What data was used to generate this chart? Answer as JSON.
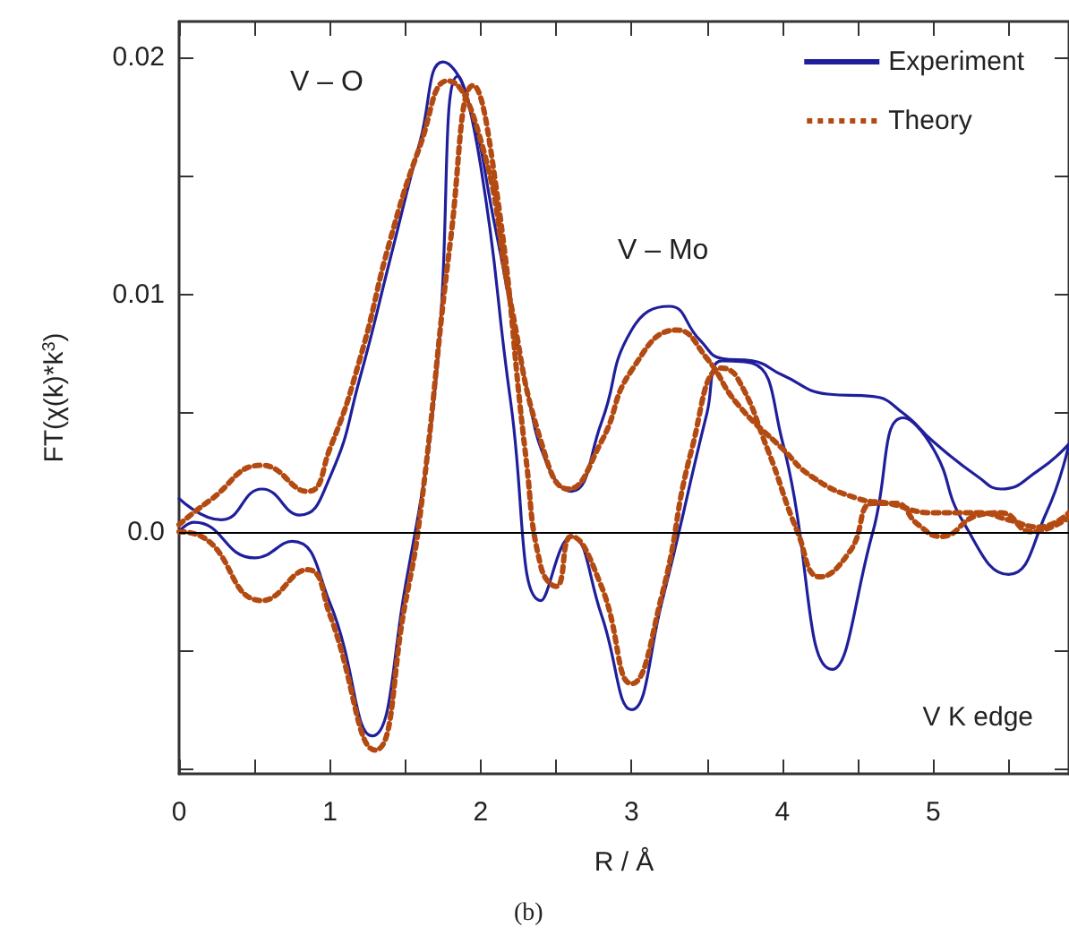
{
  "chart_data": {
    "type": "line",
    "xlabel": "R / Å",
    "ylabel": "FT(χ(k)*k$^{3}$)",
    "xlim": [
      0,
      5.9
    ],
    "ylim": [
      -0.0102,
      0.0215
    ],
    "xticks": [
      0,
      {
        "value": 0.5,
        "label": null
      },
      1,
      {
        "value": 1.5,
        "label": null
      },
      2,
      {
        "value": 2.5,
        "label": null
      },
      3,
      {
        "value": 3.5,
        "label": null
      },
      4,
      {
        "value": 4.5,
        "label": null
      },
      5,
      {
        "value": 5.5,
        "label": null
      }
    ],
    "yticks": [
      {
        "value": -0.01,
        "label": null
      },
      {
        "value": -0.005,
        "label": null
      },
      {
        "value": 0,
        "label": "0.0"
      },
      {
        "value": 0.005,
        "label": null
      },
      0.01,
      {
        "value": 0.015,
        "label": null
      },
      0.02
    ],
    "grid": false,
    "legend": "top right",
    "marker": "none",
    "ref_lines": [
      {
        "axis": "y",
        "value": 0,
        "label": null,
        "color": "#000000"
      }
    ],
    "annotations": [
      "V – O",
      "V – Mo",
      "V K edge",
      "(b)"
    ],
    "series": [
      {
        "name": "Experiment",
        "color": "#1f1f9c",
        "line_style": "solid",
        "x": [
          0,
          0.28,
          0.55,
          0.8,
          1.0,
          1.2,
          1.4,
          1.6,
          1.75,
          1.9,
          2.1,
          2.3,
          2.45,
          2.6,
          2.8,
          3.0,
          3.25,
          3.45,
          3.6,
          3.8,
          4.0,
          4.3,
          4.6,
          4.8,
          5.0,
          5.3,
          5.45,
          5.7,
          5.9
        ],
        "values": [
          0.0014,
          0.0005,
          0.0018,
          0.0007,
          0.0023,
          0.0065,
          0.0115,
          0.0165,
          0.0198,
          0.0185,
          0.0127,
          0.0062,
          0.0027,
          0.0017,
          0.0046,
          0.0085,
          0.0095,
          0.0081,
          0.0073,
          0.0072,
          0.0066,
          0.0058,
          0.0057,
          0.005,
          0.0038,
          0.0023,
          0.0018,
          0.0026,
          0.0037
        ]
      },
      {
        "color": "#1f1f9c",
        "line_style": "solid",
        "x": [
          0,
          0.1,
          0.5,
          0.75,
          1.0,
          1.28,
          1.5,
          1.7,
          1.85,
          2.0,
          2.2,
          2.4,
          2.6,
          2.8,
          3.0,
          3.2,
          3.5,
          3.6,
          3.8,
          4.0,
          4.33,
          4.6,
          4.8,
          5.0,
          5.2,
          5.5,
          5.75,
          5.9
        ],
        "values": [
          0.0,
          0.0004,
          -0.0011,
          -0.0004,
          -0.003,
          -0.0086,
          -0.0023,
          0.0062,
          0.0192,
          0.0154,
          0.0054,
          -0.0029,
          -0.0002,
          -0.0035,
          -0.0075,
          -0.003,
          0.005,
          0.0072,
          0.0071,
          0.0038,
          -0.0058,
          0.0,
          0.0048,
          0.0035,
          0.0004,
          -0.0018,
          0.0008,
          0.0037
        ]
      },
      {
        "name": "Theory",
        "color": "#b34a12",
        "line_style": "dotted",
        "x": [
          0,
          0.2,
          0.55,
          0.85,
          1.0,
          1.2,
          1.4,
          1.6,
          1.78,
          2.0,
          2.2,
          2.4,
          2.58,
          2.8,
          3.0,
          3.3,
          3.5,
          3.7,
          4.0,
          4.2,
          4.5,
          4.7,
          5.0,
          5.3,
          5.5,
          5.7,
          5.9
        ],
        "values": [
          0.0003,
          0.0013,
          0.0028,
          0.0017,
          0.0035,
          0.0073,
          0.0123,
          0.0163,
          0.019,
          0.0165,
          0.0096,
          0.0038,
          0.0018,
          0.0038,
          0.0068,
          0.0085,
          0.0073,
          0.0054,
          0.0035,
          0.0023,
          0.0014,
          0.0012,
          0.0008,
          0.0008,
          0.0005,
          0.0002,
          0.0008
        ]
      },
      {
        "color": "#b34a12",
        "line_style": "dotted",
        "x": [
          0,
          0.15,
          0.55,
          0.85,
          1.0,
          1.3,
          1.5,
          1.6,
          1.8,
          1.95,
          2.1,
          2.3,
          2.4,
          2.5,
          2.6,
          2.8,
          3.0,
          3.2,
          3.4,
          3.6,
          3.7,
          3.9,
          4.1,
          4.25,
          4.45,
          4.6,
          4.75,
          4.9,
          5.05,
          5.3,
          5.45,
          5.65,
          5.9
        ],
        "values": [
          0.0,
          -0.0002,
          -0.0029,
          -0.0016,
          -0.0035,
          -0.0092,
          -0.003,
          0.0008,
          0.0123,
          0.0188,
          0.0146,
          0.0031,
          -0.0015,
          -0.0023,
          -0.0002,
          -0.0023,
          -0.0064,
          -0.0027,
          0.0035,
          0.0069,
          0.0065,
          0.0035,
          0.0,
          -0.0019,
          -0.0008,
          0.0012,
          0.0012,
          0.0003,
          -0.0002,
          0.0007,
          0.0008,
          0.0,
          0.0006
        ]
      }
    ]
  }
}
